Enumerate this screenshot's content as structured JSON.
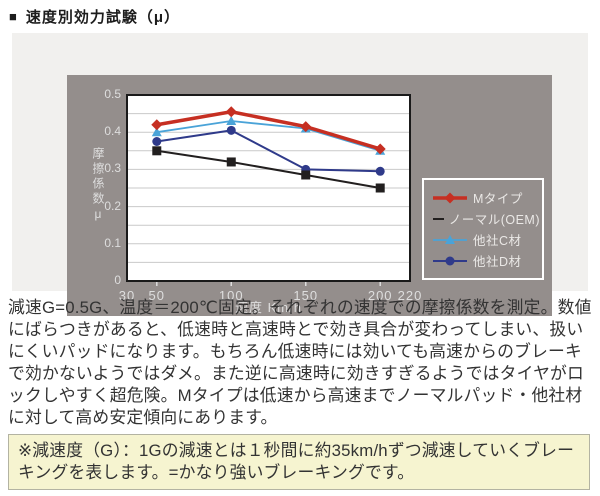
{
  "page": {
    "title_bullet": "■",
    "title": "速度別効力試験（μ）"
  },
  "chart_data": {
    "type": "line",
    "title": "",
    "xlabel": "速度 Km/h",
    "ylabel": "摩擦係数μ",
    "x": [
      50,
      100,
      150,
      200
    ],
    "xlim": [
      30,
      220
    ],
    "ylim": [
      0,
      0.5
    ],
    "xticks": [
      30,
      50,
      100,
      150,
      200,
      220
    ],
    "xtick_marks": [
      50,
      100,
      150,
      200
    ],
    "yticks": [
      0,
      0.1,
      0.2,
      0.3,
      0.4,
      0.5
    ],
    "y_minor_grid_step": 0.05,
    "grid": true,
    "legend_position": "right",
    "plot_bg": "#ffffff",
    "panel_bg": "#948e8c",
    "grid_color": "#c9c9c9",
    "axis_text_color": "#dedede",
    "series": [
      {
        "name": "Mタイプ",
        "marker": "diamond",
        "color": "#c62f22",
        "line_width": 3.5,
        "values": [
          0.42,
          0.455,
          0.415,
          0.355
        ]
      },
      {
        "name": "ノーマル(OEM)",
        "marker": "square",
        "color": "#221f1f",
        "line_width": 2,
        "values": [
          0.35,
          0.32,
          0.285,
          0.25
        ]
      },
      {
        "name": "他社C材",
        "marker": "triangle",
        "color": "#4aa3d8",
        "line_width": 1.8,
        "values": [
          0.4,
          0.43,
          0.41,
          0.35
        ]
      },
      {
        "name": "他社D材",
        "marker": "circle",
        "color": "#2f3a8a",
        "line_width": 2,
        "values": [
          0.375,
          0.405,
          0.3,
          0.295
        ]
      }
    ]
  },
  "description": "減速G=0.5G、温度＝200℃固定。それぞれの速度での摩擦係数を測定。数値にばらつきがあると、低速時と高速時とで効き具合が変わってしまい、扱いにくいパッドになります。もちろん低速時には効いても高速からのブレーキで効かないようではダメ。また逆に高速時に効きすぎるようではタイヤがロックしやすく超危険。Mタイプは低速から高速までノーマルパッド・他社材に対して高め安定傾向にあります。",
  "note": "※減速度（G）：1Gの減速とは１秒間に約35km/hずつ減速していくブレーキングを表します。=かなり強いブレーキングです。"
}
